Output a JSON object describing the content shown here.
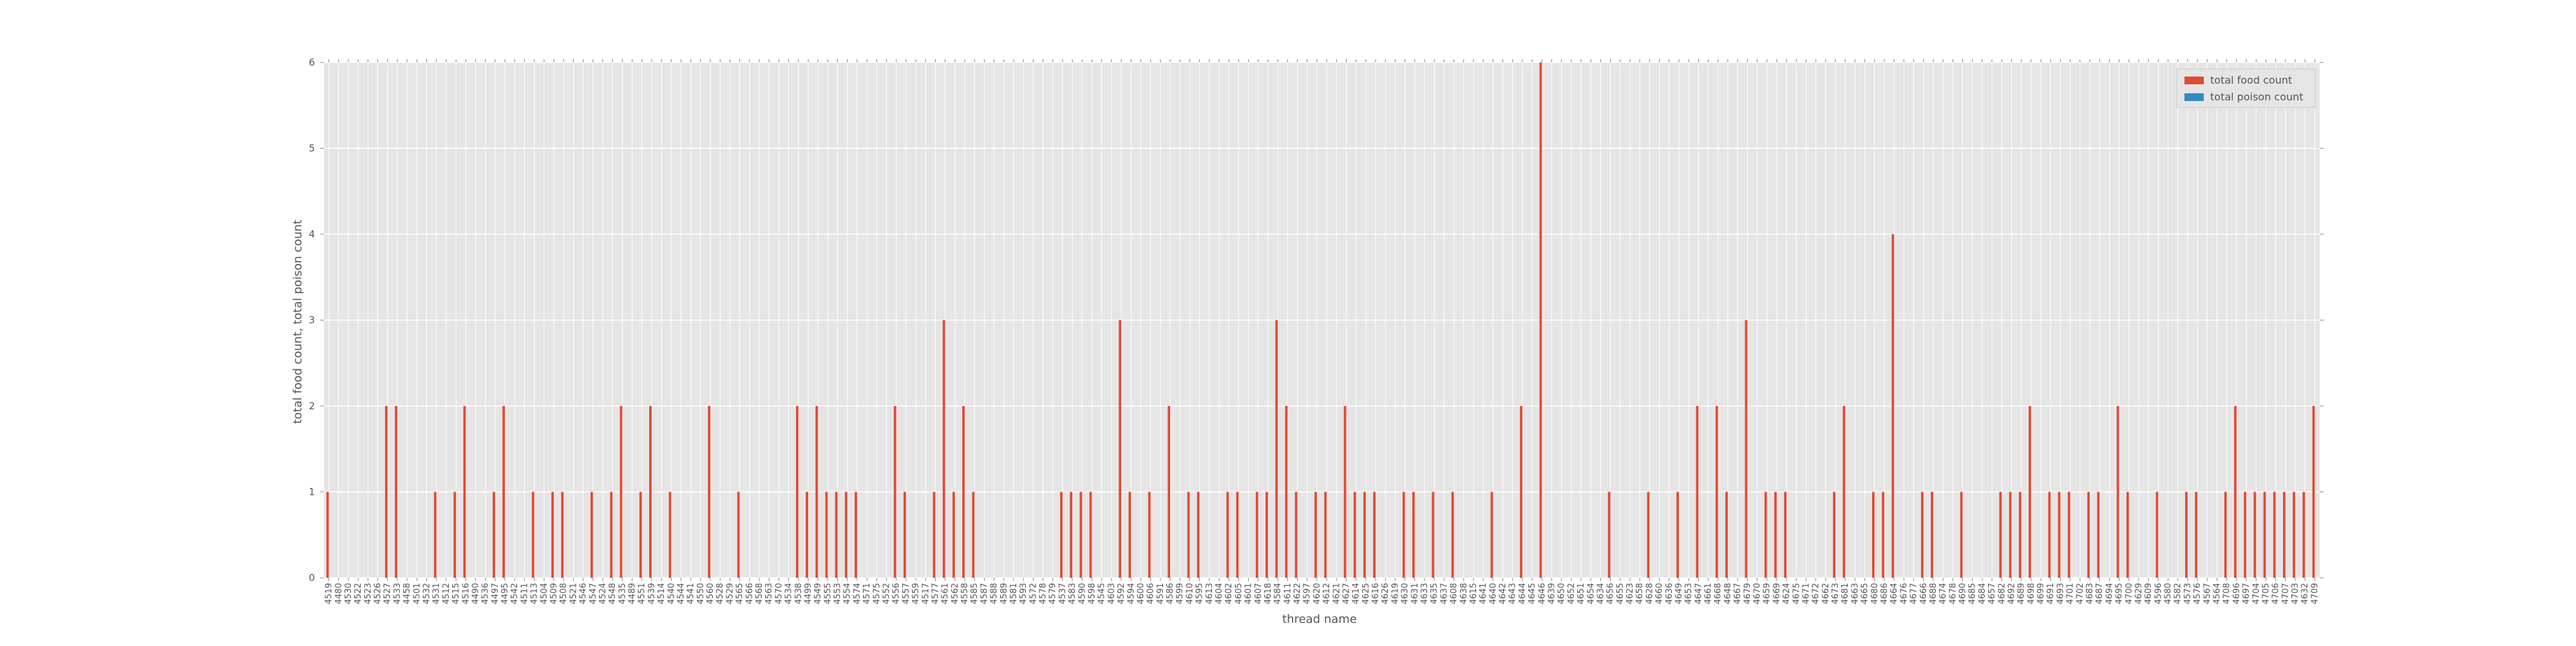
{
  "chart_data": {
    "type": "bar",
    "xlabel": "thread name",
    "ylabel": "total food count, total poison count",
    "categories": [
      "4519",
      "4480",
      "4530",
      "4522",
      "4523",
      "4526",
      "4527",
      "4533",
      "4458",
      "4501",
      "4532",
      "4531",
      "4512",
      "4515",
      "4516",
      "4490",
      "4536",
      "4497",
      "4495",
      "4542",
      "4511",
      "4513",
      "4504",
      "4509",
      "4508",
      "4521",
      "4546",
      "4547",
      "4524",
      "4548",
      "4535",
      "4489",
      "4551",
      "4539",
      "4514",
      "4540",
      "4544",
      "4541",
      "4550",
      "4560",
      "4528",
      "4529",
      "4565",
      "4566",
      "4568",
      "4563",
      "4570",
      "4534",
      "4538",
      "4499",
      "4549",
      "4555",
      "4553",
      "4554",
      "4574",
      "4571",
      "4575",
      "4552",
      "4556",
      "4557",
      "4559",
      "4517",
      "4577",
      "4561",
      "4562",
      "4558",
      "4585",
      "4587",
      "4588",
      "4589",
      "4581",
      "4593",
      "4572",
      "4578",
      "4579",
      "4537",
      "4583",
      "4590",
      "4598",
      "4545",
      "4603",
      "4592",
      "4594",
      "4600",
      "4606",
      "4591",
      "4586",
      "4599",
      "4610",
      "4595",
      "4613",
      "4604",
      "4602",
      "4605",
      "4601",
      "4607",
      "4618",
      "4584",
      "4611",
      "4622",
      "4597",
      "4620",
      "4612",
      "4621",
      "4627",
      "4614",
      "4625",
      "4616",
      "4626",
      "4619",
      "4630",
      "4631",
      "4633",
      "4635",
      "4637",
      "4608",
      "4638",
      "4615",
      "4641",
      "4640",
      "4642",
      "4643",
      "4644",
      "4645",
      "4646",
      "4639",
      "4650",
      "4652",
      "4651",
      "4654",
      "4634",
      "4656",
      "4655",
      "4623",
      "4658",
      "4628",
      "4660",
      "4636",
      "4649",
      "4653",
      "4647",
      "4661",
      "4668",
      "4648",
      "4667",
      "4679",
      "4670",
      "4659",
      "4669",
      "4624",
      "4675",
      "4671",
      "4672",
      "4662",
      "4673",
      "4681",
      "4663",
      "4665",
      "4680",
      "4686",
      "4664",
      "4676",
      "4677",
      "4666",
      "4688",
      "4674",
      "4678",
      "4690",
      "4685",
      "4684",
      "4657",
      "4682",
      "4692",
      "4689",
      "4698",
      "4699",
      "4691",
      "4693",
      "4701",
      "4702",
      "4683",
      "4687",
      "4694",
      "4695",
      "4700",
      "4629",
      "4609",
      "4596",
      "4580",
      "4582",
      "4573",
      "4576",
      "4567",
      "4564",
      "4708",
      "4696",
      "4697",
      "4704",
      "4705",
      "4706",
      "4707",
      "4703",
      "4632",
      "4709"
    ],
    "series": [
      {
        "name": "total food count",
        "color": "#e24a33",
        "values": [
          1,
          0,
          0,
          0,
          0,
          0,
          2,
          2,
          0,
          0,
          0,
          1,
          0,
          1,
          2,
          0,
          0,
          1,
          2,
          0,
          0,
          1,
          0,
          1,
          1,
          0,
          0,
          1,
          0,
          1,
          2,
          0,
          1,
          2,
          0,
          1,
          0,
          0,
          0,
          2,
          0,
          0,
          1,
          0,
          0,
          0,
          0,
          0,
          2,
          1,
          2,
          1,
          1,
          1,
          1,
          0,
          0,
          0,
          2,
          1,
          0,
          0,
          1,
          3,
          1,
          2,
          1,
          0,
          0,
          0,
          0,
          0,
          0,
          0,
          0,
          1,
          1,
          1,
          1,
          0,
          0,
          3,
          1,
          0,
          1,
          0,
          2,
          0,
          1,
          1,
          0,
          0,
          1,
          1,
          0,
          1,
          1,
          3,
          2,
          1,
          0,
          1,
          1,
          0,
          2,
          1,
          1,
          1,
          0,
          0,
          1,
          1,
          0,
          1,
          0,
          1,
          0,
          0,
          0,
          1,
          0,
          0,
          2,
          0,
          6,
          0,
          0,
          0,
          0,
          0,
          0,
          1,
          0,
          0,
          0,
          1,
          0,
          0,
          1,
          0,
          2,
          0,
          2,
          1,
          0,
          3,
          0,
          1,
          1,
          1,
          0,
          0,
          0,
          0,
          1,
          2,
          0,
          0,
          1,
          1,
          4,
          0,
          0,
          1,
          1,
          0,
          0,
          1,
          0,
          0,
          0,
          1,
          1,
          1,
          2,
          0,
          1,
          1,
          1,
          0,
          1,
          1,
          0,
          2,
          1,
          0,
          0,
          1,
          0,
          0,
          1,
          1,
          0,
          0,
          1,
          2,
          1,
          1,
          1,
          1,
          1,
          1,
          1,
          2
        ]
      },
      {
        "name": "total poison count",
        "color": "#348abd",
        "values": [
          0,
          0,
          0,
          0,
          0,
          0,
          0,
          0,
          0,
          0,
          0,
          0,
          0,
          0,
          0,
          0,
          0,
          0,
          0,
          0,
          0,
          0,
          0,
          0,
          0,
          0,
          0,
          0,
          0,
          0,
          0,
          0,
          0,
          0,
          0,
          0,
          0,
          0,
          0,
          0,
          0,
          0,
          0,
          0,
          0,
          0,
          0,
          0,
          0,
          0,
          0,
          0,
          0,
          0,
          0,
          0,
          0,
          0,
          0,
          0,
          0,
          0,
          0,
          0,
          0,
          0,
          0,
          0,
          0,
          0,
          0,
          0,
          0,
          0,
          0,
          0,
          0,
          0,
          0,
          0,
          0,
          0,
          0,
          0,
          0,
          0,
          0,
          0,
          0,
          0,
          0,
          0,
          0,
          0,
          0,
          0,
          0,
          0,
          0,
          0,
          0,
          0,
          0,
          0,
          0,
          0,
          0,
          0,
          0,
          0,
          0,
          0,
          0,
          0,
          0,
          0,
          0,
          0,
          0,
          0,
          0,
          0,
          0,
          0,
          0,
          0,
          0,
          0,
          0,
          0,
          0,
          0,
          0,
          0,
          0,
          0,
          0,
          0,
          0,
          0,
          0,
          0,
          0,
          0,
          0,
          0,
          0,
          0,
          0,
          0,
          0,
          0,
          0,
          0,
          0,
          0,
          0,
          0,
          0,
          0,
          0,
          0,
          0,
          0,
          0,
          0,
          0,
          0,
          0,
          0,
          0,
          0,
          0,
          0,
          0,
          0,
          0,
          0,
          0,
          0,
          0,
          0,
          0,
          0,
          0,
          0,
          0,
          0,
          0,
          0,
          0,
          0,
          0,
          0,
          0,
          0,
          0,
          0,
          0,
          0,
          0,
          0,
          0,
          0
        ]
      }
    ],
    "ylim": [
      0,
      6
    ],
    "yticks": [
      0,
      1,
      2,
      3,
      4,
      5,
      6
    ],
    "grid": true,
    "legend": "upper right"
  }
}
